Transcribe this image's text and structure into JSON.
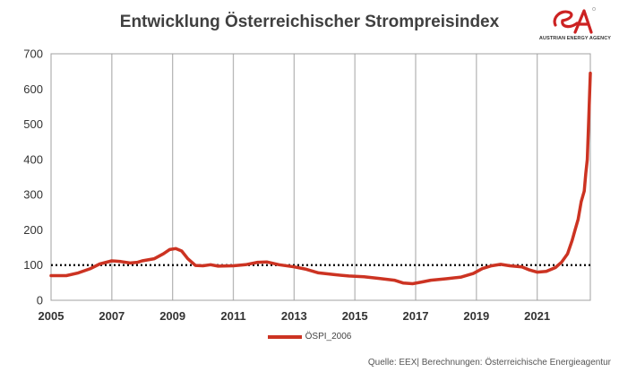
{
  "chart_data": {
    "type": "line",
    "title": "Entwicklung Österreichischer Strompreisindex",
    "xlabel": "",
    "ylabel": "",
    "xlim": [
      2005,
      2022.75
    ],
    "ylim": [
      0,
      700
    ],
    "y_ticks": [
      0,
      100,
      200,
      300,
      400,
      500,
      600,
      700
    ],
    "x_ticks": [
      2005,
      2007,
      2009,
      2011,
      2013,
      2015,
      2017,
      2019,
      2021
    ],
    "grid": "vertical",
    "legend_position": "bottom-center",
    "reference_line": {
      "y": 100,
      "style": "dotted",
      "color": "#000000"
    },
    "series": [
      {
        "name": "ÖSPI_2006",
        "color": "#cc3322",
        "points": [
          [
            2005.0,
            70
          ],
          [
            2005.5,
            70
          ],
          [
            2005.9,
            78
          ],
          [
            2006.3,
            90
          ],
          [
            2006.6,
            103
          ],
          [
            2007.0,
            112
          ],
          [
            2007.3,
            110
          ],
          [
            2007.6,
            106
          ],
          [
            2007.85,
            108
          ],
          [
            2008.0,
            112
          ],
          [
            2008.4,
            118
          ],
          [
            2008.7,
            132
          ],
          [
            2008.9,
            144
          ],
          [
            2009.1,
            147
          ],
          [
            2009.3,
            140
          ],
          [
            2009.5,
            118
          ],
          [
            2009.75,
            99
          ],
          [
            2010.0,
            98
          ],
          [
            2010.25,
            101
          ],
          [
            2010.5,
            97
          ],
          [
            2011.0,
            98
          ],
          [
            2011.4,
            101
          ],
          [
            2011.8,
            108
          ],
          [
            2012.1,
            109
          ],
          [
            2012.5,
            101
          ],
          [
            2013.0,
            95
          ],
          [
            2013.4,
            88
          ],
          [
            2013.8,
            78
          ],
          [
            2014.3,
            73
          ],
          [
            2014.8,
            69
          ],
          [
            2015.3,
            67
          ],
          [
            2015.8,
            62
          ],
          [
            2016.3,
            57
          ],
          [
            2016.6,
            49
          ],
          [
            2016.9,
            47
          ],
          [
            2017.2,
            52
          ],
          [
            2017.5,
            57
          ],
          [
            2018.0,
            61
          ],
          [
            2018.5,
            66
          ],
          [
            2018.9,
            76
          ],
          [
            2019.2,
            90
          ],
          [
            2019.5,
            98
          ],
          [
            2019.8,
            102
          ],
          [
            2020.1,
            98
          ],
          [
            2020.5,
            95
          ],
          [
            2020.75,
            86
          ],
          [
            2021.0,
            80
          ],
          [
            2021.3,
            82
          ],
          [
            2021.6,
            93
          ],
          [
            2021.8,
            108
          ],
          [
            2022.0,
            132
          ],
          [
            2022.15,
            170
          ],
          [
            2022.25,
            200
          ],
          [
            2022.35,
            230
          ],
          [
            2022.45,
            280
          ],
          [
            2022.55,
            310
          ],
          [
            2022.6,
            360
          ],
          [
            2022.65,
            400
          ],
          [
            2022.7,
            520
          ],
          [
            2022.75,
            645
          ]
        ]
      }
    ]
  },
  "logo": {
    "text": "AUSTRIAN ENERGY AGENCY",
    "accent": "#cc2222"
  },
  "source": "Quelle: EEX| Berechnungen: Österreichische Energieagentur"
}
